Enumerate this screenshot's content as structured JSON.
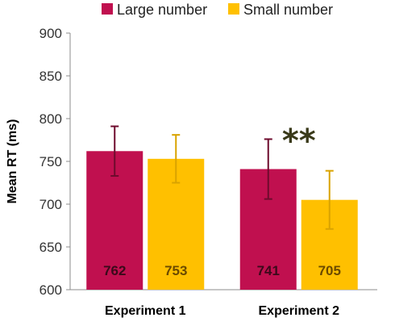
{
  "chart_data": {
    "type": "bar",
    "categories": [
      "Experiment 1",
      "Experiment 2"
    ],
    "series": [
      {
        "name": "Large number",
        "values": [
          762,
          741
        ],
        "error": [
          29,
          35
        ],
        "color": "#c0104f",
        "label_color": "#3a0a1a"
      },
      {
        "name": "Small number",
        "values": [
          753,
          705
        ],
        "error": [
          28,
          34
        ],
        "color": "#ffc000",
        "label_color": "#6b4a00"
      }
    ],
    "ylabel": "Mean RT (ms)",
    "ylim": [
      600,
      900
    ],
    "yticks": [
      600,
      650,
      700,
      750,
      800,
      850,
      900
    ],
    "grid": false,
    "legend": "top",
    "annotations": [
      {
        "text": "**",
        "category": "Experiment 2"
      }
    ],
    "data_labels": true
  }
}
